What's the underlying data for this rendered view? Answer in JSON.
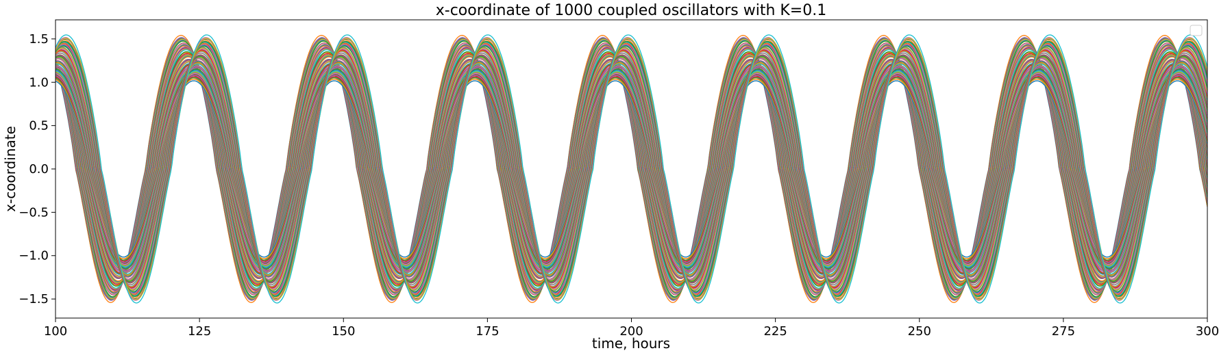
{
  "chart_data": {
    "type": "line",
    "title": "x-coordinate of 1000 coupled oscillators with K=0.1",
    "xlabel": "time, hours",
    "ylabel": "x-coordinate",
    "xlim": [
      100,
      300
    ],
    "ylim": [
      -1.72,
      1.72
    ],
    "xticks": [
      100,
      125,
      150,
      175,
      200,
      225,
      250,
      275,
      300
    ],
    "xtick_labels": [
      "100",
      "125",
      "150",
      "175",
      "200",
      "225",
      "250",
      "275",
      "300"
    ],
    "yticks": [
      -1.5,
      -1.0,
      -0.5,
      0.0,
      0.5,
      1.0,
      1.5
    ],
    "ytick_labels": [
      "−1.5",
      "−1.0",
      "−0.5",
      "0.0",
      "0.5",
      "1.0",
      "1.5"
    ],
    "grid": false,
    "legend": "top-right, empty",
    "series_count": 1000,
    "oscillation": {
      "amplitude_outer": 1.55,
      "amplitude_inner": 1.0,
      "period_hours": 24.4,
      "first_peak_hours": 124,
      "first_trough_hours": 111.5,
      "phase_spread_hours": 4.5
    },
    "colors": [
      "#1f77b4",
      "#ff7f0e",
      "#2ca02c",
      "#d62728",
      "#9467bd",
      "#8c564b",
      "#e377c2",
      "#7f7f7f",
      "#bcbd22",
      "#17becf"
    ]
  }
}
